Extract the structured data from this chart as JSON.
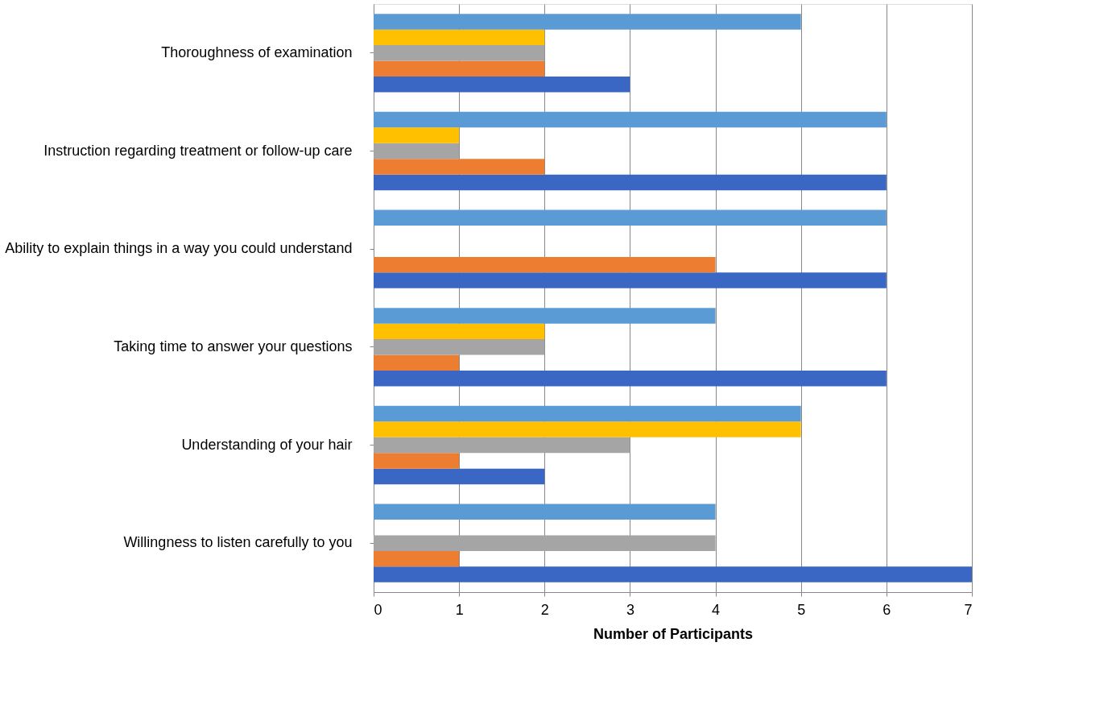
{
  "chart_data": {
    "type": "bar",
    "orientation": "horizontal",
    "xlabel": "Number of Participants",
    "categories": [
      "Thoroughness of examination",
      "Instruction regarding treatment or follow-up care",
      "Ability to explain things in a way you could understand",
      "Taking time to answer your questions",
      "Understanding of your hair",
      "Willingness to listen carefully to you"
    ],
    "series": [
      {
        "color": "#3a67c4",
        "values": [
          3,
          6,
          6,
          6,
          2,
          7
        ]
      },
      {
        "color": "#ed7d31",
        "values": [
          2,
          2,
          4,
          1,
          1,
          1
        ]
      },
      {
        "color": "#a5a5a5",
        "values": [
          2,
          1,
          0,
          2,
          3,
          4
        ]
      },
      {
        "color": "#ffc000",
        "values": [
          2,
          1,
          0,
          2,
          5,
          0
        ]
      },
      {
        "color": "#5b9bd5",
        "values": [
          5,
          6,
          6,
          4,
          5,
          4
        ]
      }
    ],
    "xlim": [
      0,
      7
    ],
    "xticks": [
      0,
      1,
      2,
      3,
      4,
      5,
      6,
      7
    ],
    "grid": "x"
  }
}
